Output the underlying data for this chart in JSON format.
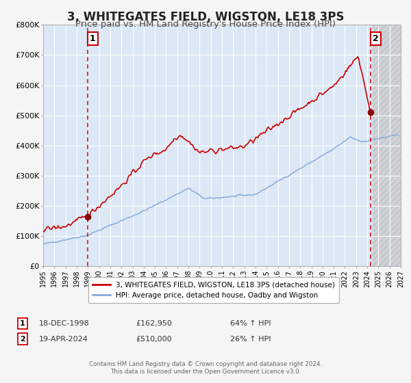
{
  "title": "3, WHITEGATES FIELD, WIGSTON, LE18 3PS",
  "subtitle": "Price paid vs. HM Land Registry's House Price Index (HPI)",
  "title_fontsize": 12,
  "subtitle_fontsize": 9.5,
  "bg_color": "#f5f5f5",
  "plot_bg_color": "#dce8f5",
  "future_bg_color": "#d8d8d8",
  "grid_color": "#ffffff",
  "red_line_color": "#cc0000",
  "blue_line_color": "#88aadd",
  "dashed_line_color": "#cc0000",
  "marker_color": "#8b0000",
  "marker_size": 7,
  "legend_label_red": "3, WHITEGATES FIELD, WIGSTON, LE18 3PS (detached house)",
  "legend_label_blue": "HPI: Average price, detached house, Oadby and Wigston",
  "ylabel_ticks": [
    "£0",
    "£100K",
    "£200K",
    "£300K",
    "£400K",
    "£500K",
    "£600K",
    "£700K",
    "£800K"
  ],
  "ytick_vals": [
    0,
    100000,
    200000,
    300000,
    400000,
    500000,
    600000,
    700000,
    800000
  ],
  "annotation1_date": "18-DEC-1998",
  "annotation1_price": "£162,950",
  "annotation1_hpi": "64% ↑ HPI",
  "annotation2_date": "19-APR-2024",
  "annotation2_price": "£510,000",
  "annotation2_hpi": "26% ↑ HPI",
  "vline1_year": 1999.0,
  "vline2_year": 2024.33,
  "sale1_year": 1998.97,
  "sale1_price": 162950,
  "sale2_year": 2024.3,
  "sale2_price": 510000,
  "xmin": 1995,
  "xmax": 2027,
  "ymin": 0,
  "ymax": 800000,
  "future_start": 2024.5,
  "footer_text": "Contains HM Land Registry data © Crown copyright and database right 2024.\nThis data is licensed under the Open Government Licence v3.0."
}
